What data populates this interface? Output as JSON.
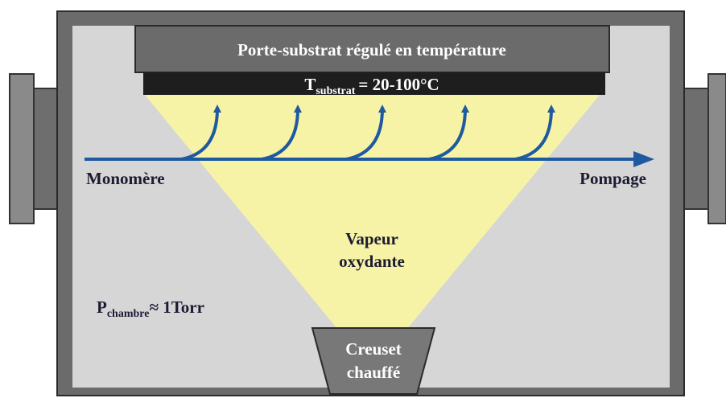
{
  "holder": {
    "title": "Porte-substrat régulé en température",
    "temperature": {
      "symbol": "T",
      "subscript": "substrat",
      "value": "= 20-100°C"
    }
  },
  "flow": {
    "inlet": "Monomère",
    "outlet": "Pompage"
  },
  "vapor": {
    "lines": [
      "Vapeur",
      "oxydante"
    ]
  },
  "pressure": {
    "symbol": "P",
    "subscript": "chambre",
    "value": "≈ 1Torr"
  },
  "crucible": {
    "lines": [
      "Creuset",
      "chauffé"
    ]
  }
}
